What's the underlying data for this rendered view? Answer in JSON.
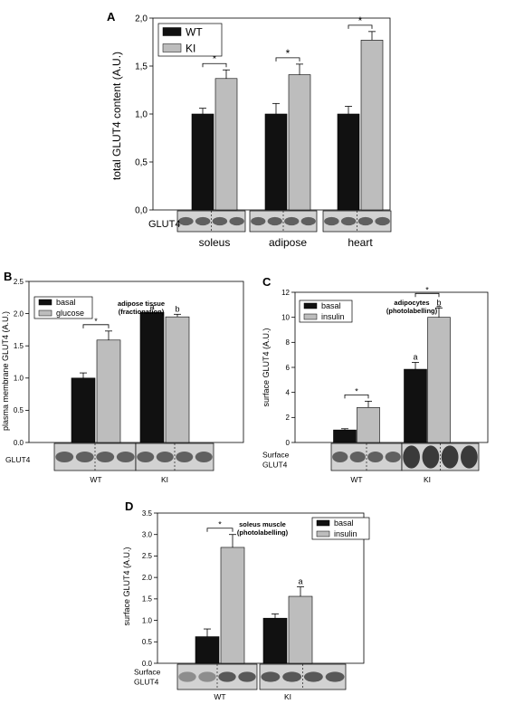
{
  "figure": {
    "colors": {
      "wt": "#111111",
      "ki": "#bdbdbd",
      "frame": "#000000",
      "blot_bg": "#d2d2d2",
      "band": "#3a3a3a"
    }
  },
  "chart_data": [
    {
      "panel": "A",
      "type": "bar",
      "title": "",
      "ylabel": "total GLUT4 content (A.U.)",
      "xlabel": "",
      "ylim": [
        0,
        2.0
      ],
      "yticks": [
        0,
        0.5,
        1.0,
        1.5,
        2.0
      ],
      "ytick_labels": [
        "0,0",
        "0,5",
        "1,0",
        "1,5",
        "2,0"
      ],
      "categories": [
        "soleus",
        "adipose",
        "heart"
      ],
      "series": [
        {
          "name": "WT",
          "color": "#111111",
          "values": [
            1.0,
            1.0,
            1.0
          ],
          "errors": [
            0.06,
            0.11,
            0.08
          ],
          "letters": [
            "",
            "",
            ""
          ]
        },
        {
          "name": "KI",
          "color": "#bdbdbd",
          "values": [
            1.37,
            1.41,
            1.77
          ],
          "errors": [
            0.09,
            0.11,
            0.09
          ],
          "letters": [
            "",
            "",
            ""
          ]
        }
      ],
      "significance": [
        {
          "category": 0,
          "label": "*"
        },
        {
          "category": 1,
          "label": "*"
        },
        {
          "category": 2,
          "label": "*"
        }
      ],
      "legend": {
        "position": "top-left"
      },
      "annotation_lines": [],
      "blot_label_lines": [
        "GLUT4"
      ]
    },
    {
      "panel": "B",
      "type": "bar",
      "title": "",
      "ylabel": "plasma membrane GLUT4 (A.U.)",
      "xlabel": "",
      "ylim": [
        0,
        2.5
      ],
      "yticks": [
        0,
        0.5,
        1.0,
        1.5,
        2.0,
        2.5
      ],
      "ytick_labels": [
        "0.0",
        "0.5",
        "1.0",
        "1.5",
        "2.0",
        "2.5"
      ],
      "categories": [
        "WT",
        "KI"
      ],
      "series": [
        {
          "name": "basal",
          "color": "#111111",
          "values": [
            1.0,
            2.02
          ],
          "errors": [
            0.08,
            0.0
          ],
          "letters": [
            "",
            "a"
          ]
        },
        {
          "name": "glucose",
          "color": "#bdbdbd",
          "values": [
            1.59,
            1.95
          ],
          "errors": [
            0.14,
            0.04
          ],
          "letters": [
            "",
            "b"
          ]
        }
      ],
      "significance": [
        {
          "category": 0,
          "label": "*"
        }
      ],
      "legend": {
        "position": "top-left"
      },
      "annotation_lines": [
        "adipose tissue",
        "(fractionation)"
      ],
      "blot_label_lines": [
        "GLUT4"
      ]
    },
    {
      "panel": "C",
      "type": "bar",
      "title": "",
      "ylabel": "surface GLUT4 (A.U.)",
      "xlabel": "",
      "ylim": [
        0,
        12
      ],
      "yticks": [
        0,
        2,
        4,
        6,
        8,
        10,
        12
      ],
      "ytick_labels": [
        "0",
        "2",
        "4",
        "6",
        "8",
        "10",
        "12"
      ],
      "categories": [
        "WT",
        "KI"
      ],
      "series": [
        {
          "name": "basal",
          "color": "#111111",
          "values": [
            1.0,
            5.85
          ],
          "errors": [
            0.1,
            0.55
          ],
          "letters": [
            "",
            "a"
          ]
        },
        {
          "name": "insulin",
          "color": "#bdbdbd",
          "values": [
            2.8,
            10.0
          ],
          "errors": [
            0.5,
            0.75
          ],
          "letters": [
            "",
            "b"
          ]
        }
      ],
      "significance": [
        {
          "category": 0,
          "label": "*"
        },
        {
          "category": 1,
          "label": "*"
        }
      ],
      "legend": {
        "position": "top-left"
      },
      "annotation_lines": [
        "adipocytes",
        "(photolabelling)"
      ],
      "blot_label_lines": [
        "Surface",
        "GLUT4"
      ]
    },
    {
      "panel": "D",
      "type": "bar",
      "title": "",
      "ylabel": "surface GLUT4 (A.U.)",
      "xlabel": "",
      "ylim": [
        0,
        3.5
      ],
      "yticks": [
        0,
        0.5,
        1.0,
        1.5,
        2.0,
        2.5,
        3.0,
        3.5
      ],
      "ytick_labels": [
        "0.0",
        "0.5",
        "1.0",
        "1.5",
        "2.0",
        "2.5",
        "3.0",
        "3.5"
      ],
      "categories": [
        "WT",
        "KI"
      ],
      "series": [
        {
          "name": "basal",
          "color": "#111111",
          "values": [
            0.62,
            1.05
          ],
          "errors": [
            0.18,
            0.1
          ],
          "letters": [
            "",
            ""
          ]
        },
        {
          "name": "insulin",
          "color": "#bdbdbd",
          "values": [
            2.7,
            1.56
          ],
          "errors": [
            0.3,
            0.22
          ],
          "letters": [
            "",
            "a"
          ]
        }
      ],
      "significance": [
        {
          "category": 0,
          "label": "*"
        }
      ],
      "legend": {
        "position": "top-right"
      },
      "annotation_lines": [
        "soleus muscle",
        "(photolabelling)"
      ],
      "blot_label_lines": [
        "Surface",
        "GLUT4"
      ]
    }
  ]
}
